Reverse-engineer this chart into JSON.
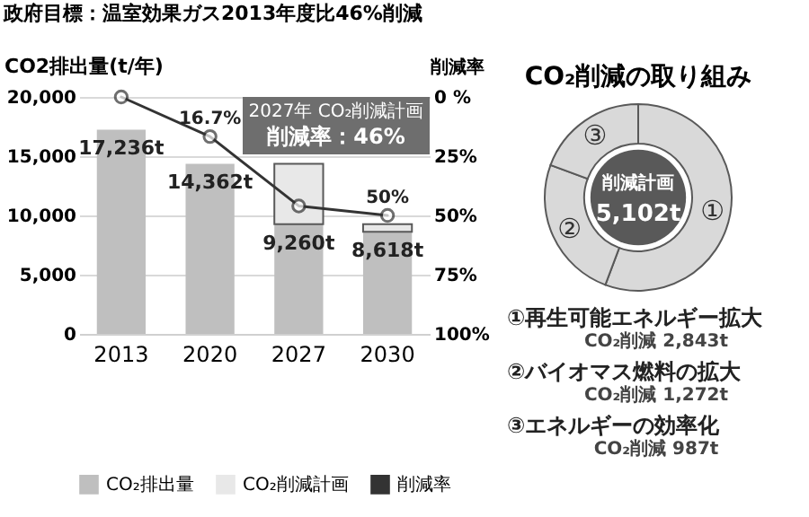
{
  "chart_data": [
    {
      "type": "bar",
      "title": "政府目標：温室効果ガス2013年度比46%削減",
      "ylabel": "CO2排出量(t/年)",
      "y2label": "削減率",
      "categories": [
        "2013",
        "2020",
        "2027",
        "2030"
      ],
      "series": [
        {
          "name": "CO₂排出量",
          "type": "bar",
          "color": "#bfbfbf",
          "values": [
            17236,
            14362,
            9260,
            8618
          ],
          "value_labels": [
            "17,236t",
            "14,362t",
            "9,260t",
            "8,618t"
          ]
        },
        {
          "name": "CO₂削減計画",
          "type": "bar",
          "color": "#e8e8e8",
          "values": [
            null,
            null,
            5102,
            642
          ]
        },
        {
          "name": "削減率",
          "type": "line",
          "axis": "y2",
          "color": "#333333",
          "values": [
            0,
            16.7,
            46,
            50
          ],
          "value_labels": [
            null,
            "16.7%",
            null,
            "50%"
          ]
        }
      ],
      "stacked": true,
      "ylim": [
        0,
        20000
      ],
      "yticks": [
        {
          "value": 0,
          "label": "0"
        },
        {
          "value": 5000,
          "label": "5,000"
        },
        {
          "value": 10000,
          "label": "10,000"
        },
        {
          "value": 15000,
          "label": "15,000"
        },
        {
          "value": 20000,
          "label": "20,000"
        }
      ],
      "y2lim": [
        100,
        0
      ],
      "y2ticks": [
        {
          "value": 0,
          "label": "0 %"
        },
        {
          "value": 25,
          "label": "25%"
        },
        {
          "value": 50,
          "label": "50%"
        },
        {
          "value": 75,
          "label": "75%"
        },
        {
          "value": 100,
          "label": "100%"
        }
      ],
      "grid": "y",
      "legend": "bottom",
      "marker": "circle",
      "line_style": "solid",
      "annotations": [
        "2027年 CO₂削減計画",
        "削減率：46%"
      ]
    },
    {
      "type": "donut",
      "title": "CO₂削減の取り組み",
      "categories": [
        "①",
        "②",
        "③"
      ],
      "values": [
        55.72,
        24.93,
        19.35
      ],
      "colors": [
        "#d9d9d9",
        "#d9d9d9",
        "#d9d9d9"
      ],
      "annotations": [
        "削減計画",
        "5,102t",
        "①再生可能エネルギー拡大",
        "CO₂削減 2,843t",
        "②バイオマス燃料の拡大",
        "CO₂削減 1,272t",
        "③エネルギーの効率化",
        "CO₂削減 987t"
      ]
    }
  ]
}
